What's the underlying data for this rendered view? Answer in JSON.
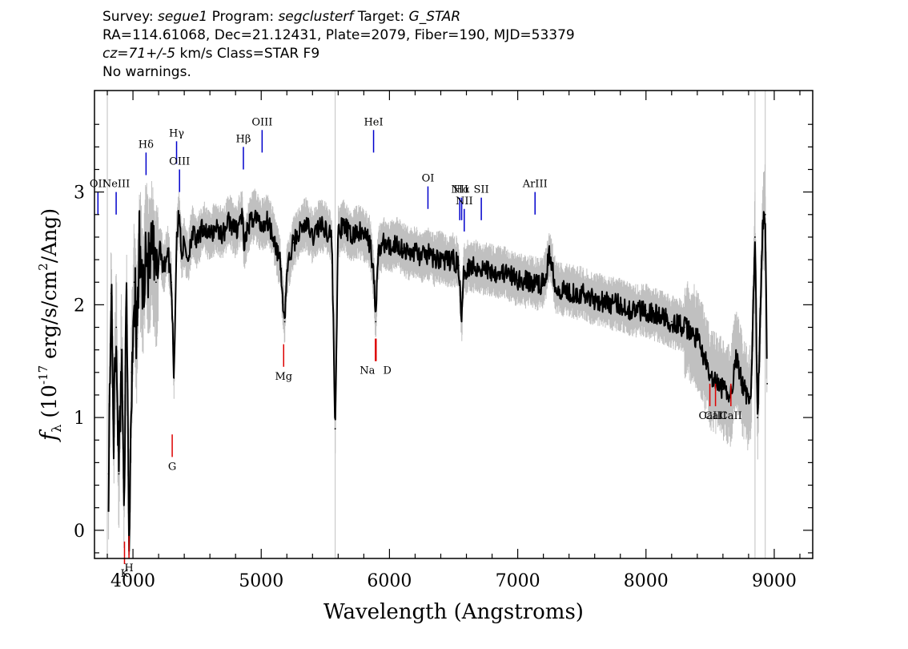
{
  "header": {
    "line1": {
      "survey_label": "Survey: ",
      "survey": "segue1",
      "program_label": " Program: ",
      "program": "segclusterf",
      "target_label": " Target: ",
      "target": "G_STAR"
    },
    "line2": "RA=114.61068, Dec=21.12431, Plate=2079, Fiber=190, MJD=53379",
    "line3": {
      "cz": "cz=71+/-5",
      "rest": " km/s Class=STAR F9"
    },
    "line4": "No warnings."
  },
  "chart_data": {
    "type": "line",
    "xlabel": "Wavelength (Angstroms)",
    "ylabel": "f_λ (10^-17 erg/s/cm^2/Ang)",
    "xlim": [
      3700,
      9300
    ],
    "ylim": [
      -0.25,
      3.9
    ],
    "xticks": [
      4000,
      5000,
      6000,
      7000,
      8000,
      9000
    ],
    "yticks": [
      0,
      1,
      2,
      3
    ],
    "colors": {
      "flux": "#000000",
      "noise_band": "#c0c0c0",
      "emission_lines": "#0000cc",
      "absorption_lines": "#dd0000"
    },
    "series": [
      {
        "x": [
          3810,
          3830,
          3850,
          3870,
          3890,
          3910,
          3930,
          3950,
          3970,
          3990,
          4010,
          4030,
          4050,
          4080,
          4100,
          4120,
          4150,
          4180,
          4210,
          4240,
          4270,
          4300,
          4320,
          4340,
          4360,
          4380,
          4400,
          4430,
          4460,
          4500,
          4550,
          4600,
          4650,
          4700,
          4750,
          4800,
          4850,
          4870,
          4900,
          4950,
          5000,
          5050,
          5100,
          5150,
          5170,
          5183,
          5200,
          5250,
          5300,
          5350,
          5400,
          5450,
          5500,
          5550,
          5577,
          5600,
          5650,
          5700,
          5750,
          5800,
          5850,
          5880,
          5893,
          5910,
          5950,
          6000,
          6050,
          6100,
          6150,
          6200,
          6250,
          6300,
          6350,
          6400,
          6450,
          6500,
          6540,
          6563,
          6580,
          6620,
          6700,
          6800,
          6900,
          7000,
          7100,
          7200,
          7250,
          7300,
          7400,
          7500,
          7600,
          7700,
          7800,
          7900,
          8000,
          8100,
          8200,
          8300,
          8400,
          8450,
          8500,
          8542,
          8600,
          8662,
          8700,
          8750,
          8800,
          8820,
          8850,
          8870,
          8890,
          8910,
          8930,
          8945
        ],
        "y": [
          0.5,
          2.1,
          0.9,
          1.8,
          0.5,
          1.6,
          0.4,
          2.0,
          -0.1,
          1.4,
          2.2,
          1.7,
          2.5,
          2.1,
          2.6,
          2.3,
          2.5,
          2.2,
          2.55,
          2.3,
          2.5,
          2.2,
          1.35,
          2.6,
          2.8,
          2.45,
          2.55,
          2.4,
          2.65,
          2.55,
          2.7,
          2.6,
          2.7,
          2.62,
          2.75,
          2.65,
          2.8,
          2.5,
          2.7,
          2.8,
          2.7,
          2.75,
          2.6,
          2.35,
          2.0,
          1.85,
          2.3,
          2.55,
          2.65,
          2.72,
          2.6,
          2.7,
          2.68,
          2.6,
          0.9,
          2.65,
          2.7,
          2.6,
          2.65,
          2.62,
          2.55,
          2.2,
          1.85,
          2.45,
          2.55,
          2.5,
          2.55,
          2.5,
          2.45,
          2.48,
          2.42,
          2.45,
          2.4,
          2.42,
          2.38,
          2.4,
          2.35,
          1.85,
          2.3,
          2.35,
          2.33,
          2.3,
          2.28,
          2.22,
          2.2,
          2.18,
          2.45,
          2.15,
          2.12,
          2.1,
          2.05,
          2.02,
          2.0,
          1.95,
          1.95,
          1.9,
          1.85,
          1.8,
          1.7,
          1.55,
          1.35,
          1.3,
          1.25,
          1.2,
          1.55,
          1.3,
          1.15,
          1.25,
          2.6,
          1.0,
          1.8,
          2.7,
          2.8,
          1.3
        ]
      }
    ],
    "emission_lines": [
      {
        "label": "OII",
        "x": 3727
      },
      {
        "label": "NeIII",
        "x": 3869
      },
      {
        "label": "Hδ",
        "x": 4102
      },
      {
        "label": "Hγ",
        "x": 4340
      },
      {
        "label": "OIII",
        "x": 4363
      },
      {
        "label": "Hβ",
        "x": 4861
      },
      {
        "label": "OIII",
        "x": 5007
      },
      {
        "label": "HeI",
        "x": 5876
      },
      {
        "label": "OI",
        "x": 6300
      },
      {
        "label": "NII",
        "x": 6548
      },
      {
        "label": "Hα",
        "x": 6563
      },
      {
        "label": "NII",
        "x": 6583
      },
      {
        "label": "SII",
        "x": 6716
      },
      {
        "label": "ArIII",
        "x": 7135
      }
    ],
    "absorption_lines": [
      {
        "label": "K",
        "x": 3934
      },
      {
        "label": "H",
        "x": 3969
      },
      {
        "label": "G",
        "x": 4306
      },
      {
        "label": "Mg",
        "x": 5175
      },
      {
        "label": "Na",
        "x": 5890
      },
      {
        "label": "D",
        "x": 5896
      },
      {
        "label": "CaII",
        "x": 8498
      },
      {
        "label": "CaII",
        "x": 8542
      },
      {
        "label": "CaII",
        "x": 8662
      }
    ]
  }
}
